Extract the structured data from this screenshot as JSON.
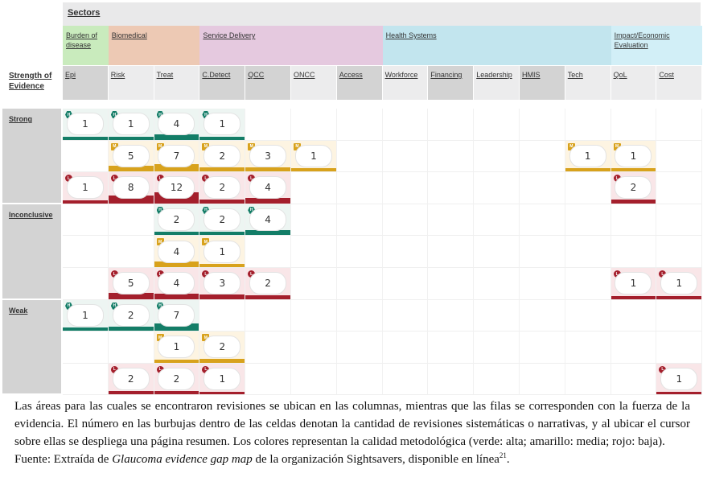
{
  "sectors_title": "Sectors",
  "strength_title": "Strength of Evidence",
  "sectors": [
    {
      "name": "Burden of disease",
      "color": "#c9ebbd"
    },
    {
      "name": "Biomedical",
      "color": "#edc9b4"
    },
    {
      "name": "Service Delivery",
      "color": "#e5c9df"
    },
    {
      "name": "Health Systems",
      "color": "#c2e5ee"
    },
    {
      "name": "Impact/Economic Evaluation",
      "color": "#d2eff7"
    }
  ],
  "columns": [
    "Epi",
    "Risk",
    "Treat",
    "C.Detect",
    "QCC",
    "ONCC",
    "Access",
    "Workforce",
    "Financing",
    "Leadership",
    "HMIS",
    "Tech",
    "QoL",
    "Cost"
  ],
  "strength_levels": [
    "Strong",
    "Inconclusive",
    "Weak"
  ],
  "quality_badges": {
    "high": "H",
    "medium": "M",
    "low": "L"
  },
  "colors": {
    "high": "#137d67",
    "medium": "#d8a21c",
    "low": "#a41f2c",
    "high_bg": "#edf5f2",
    "medium_bg": "#fdf4e2",
    "low_bg": "#f9e6e8"
  },
  "rows": [
    {
      "strength": "Strong",
      "quality": "high",
      "counts": [
        1,
        1,
        4,
        1,
        null,
        null,
        null,
        null,
        null,
        null,
        null,
        null,
        null,
        null
      ]
    },
    {
      "strength": "Strong",
      "quality": "medium",
      "counts": [
        null,
        5,
        7,
        2,
        3,
        1,
        null,
        null,
        null,
        null,
        null,
        1,
        1,
        null
      ]
    },
    {
      "strength": "Strong",
      "quality": "low",
      "counts": [
        1,
        8,
        12,
        2,
        4,
        null,
        null,
        null,
        null,
        null,
        null,
        null,
        2,
        null
      ]
    },
    {
      "strength": "Inconclusive",
      "quality": "high",
      "counts": [
        null,
        null,
        2,
        2,
        4,
        null,
        null,
        null,
        null,
        null,
        null,
        null,
        null,
        null
      ]
    },
    {
      "strength": "Inconclusive",
      "quality": "medium",
      "counts": [
        null,
        null,
        4,
        1,
        null,
        null,
        null,
        null,
        null,
        null,
        null,
        null,
        null,
        null
      ]
    },
    {
      "strength": "Inconclusive",
      "quality": "low",
      "counts": [
        null,
        5,
        4,
        3,
        2,
        null,
        null,
        null,
        null,
        null,
        null,
        null,
        1,
        1
      ]
    },
    {
      "strength": "Weak",
      "quality": "high",
      "counts": [
        1,
        2,
        7,
        null,
        null,
        null,
        null,
        null,
        null,
        null,
        null,
        null,
        null,
        null
      ]
    },
    {
      "strength": "Weak",
      "quality": "medium",
      "counts": [
        null,
        null,
        1,
        2,
        null,
        null,
        null,
        null,
        null,
        null,
        null,
        null,
        null,
        null
      ]
    },
    {
      "strength": "Weak",
      "quality": "low",
      "counts": [
        null,
        2,
        2,
        1,
        null,
        null,
        null,
        null,
        null,
        null,
        null,
        null,
        null,
        1
      ]
    }
  ],
  "caption": {
    "main": "Las áreas para las cuales se encontraron revisiones se ubican en las columnas, mientras que las filas se corresponden con la fuerza de la evidencia. El número en las burbujas dentro de las celdas denotan la cantidad de revisiones sistemáticas o narrativas, y al ubicar el cursor sobre ellas se despliega una página resumen. Los colores representan la calidad metodológica (verde: alta; amarillo: media; rojo: baja).",
    "source_prefix": "Fuente: Extraída de ",
    "source_title": "Glaucoma evidence gap map",
    "source_suffix": " de la organización Sightsavers, disponible en línea",
    "source_ref": "21",
    "source_end": "."
  }
}
